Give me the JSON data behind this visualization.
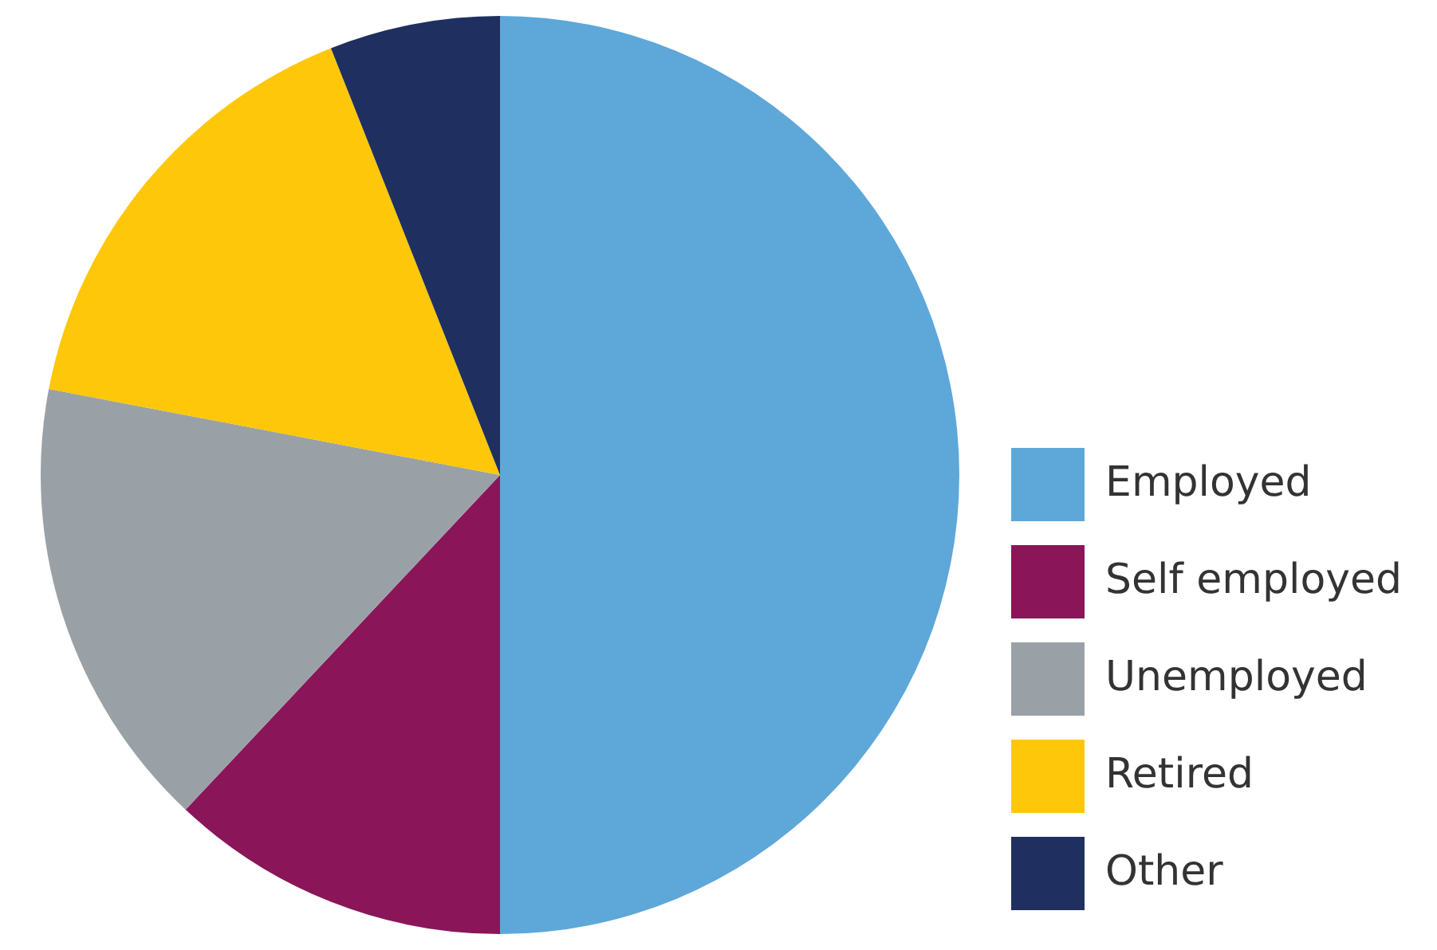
{
  "chart_data": {
    "type": "pie",
    "categories": [
      "Employed",
      "Self employed",
      "Unemployed",
      "Retired",
      "Other"
    ],
    "values": [
      50,
      12,
      16,
      16,
      6
    ],
    "colors": [
      "#5ea7d9",
      "#8a1659",
      "#9aa1a6",
      "#fec709",
      "#1f2f5f"
    ],
    "legend": "bottom right"
  }
}
